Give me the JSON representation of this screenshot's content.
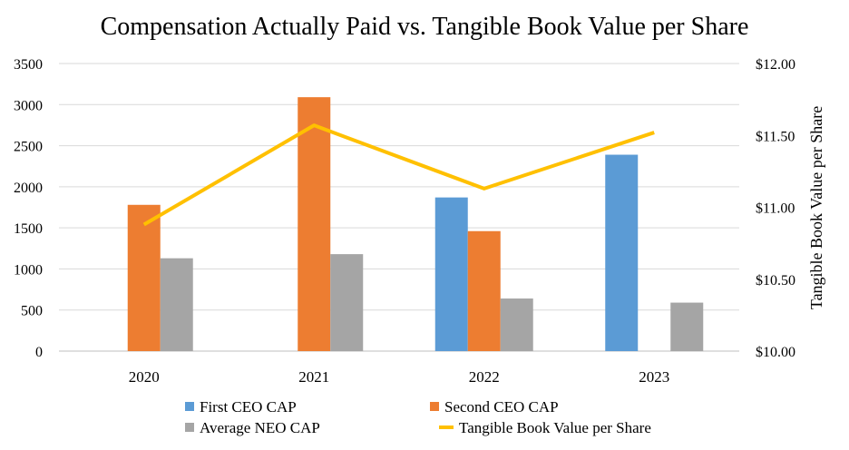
{
  "chart_data": {
    "type": "bar",
    "title": "Compensation Actually Paid vs. Tangible Book Value per Share",
    "categories": [
      "2020",
      "2021",
      "2022",
      "2023"
    ],
    "xlabel": "",
    "ylabel": "",
    "ylim": [
      0,
      3500
    ],
    "y_ticks": [
      0,
      500,
      1000,
      1500,
      2000,
      2500,
      3000,
      3500
    ],
    "y_tick_labels": [
      "0",
      "500",
      "1000",
      "1500",
      "2000",
      "2500",
      "3000",
      "3500"
    ],
    "y2label": "Tangible Book Value per Share",
    "y2lim": [
      10.0,
      12.0
    ],
    "y2_ticks": [
      10.0,
      10.5,
      11.0,
      11.5,
      12.0
    ],
    "y2_tick_labels": [
      "$10.00",
      "$10.50",
      "$11.00",
      "$11.50",
      "$12.00"
    ],
    "grid": true,
    "legend_position": "bottom",
    "series": [
      {
        "name": "First CEO CAP",
        "type": "bar",
        "axis": "left",
        "color": "#5b9bd5",
        "values": [
          null,
          null,
          1870,
          2390
        ]
      },
      {
        "name": "Second CEO CAP",
        "type": "bar",
        "axis": "left",
        "color": "#ed7d31",
        "values": [
          1780,
          3090,
          1460,
          null
        ]
      },
      {
        "name": "Average NEO CAP",
        "type": "bar",
        "axis": "left",
        "color": "#a5a5a5",
        "values": [
          1130,
          1180,
          640,
          590
        ]
      },
      {
        "name": "Tangible Book Value per Share",
        "type": "line",
        "axis": "right",
        "color": "#ffc000",
        "values": [
          10.88,
          11.57,
          11.13,
          11.52
        ]
      }
    ]
  }
}
